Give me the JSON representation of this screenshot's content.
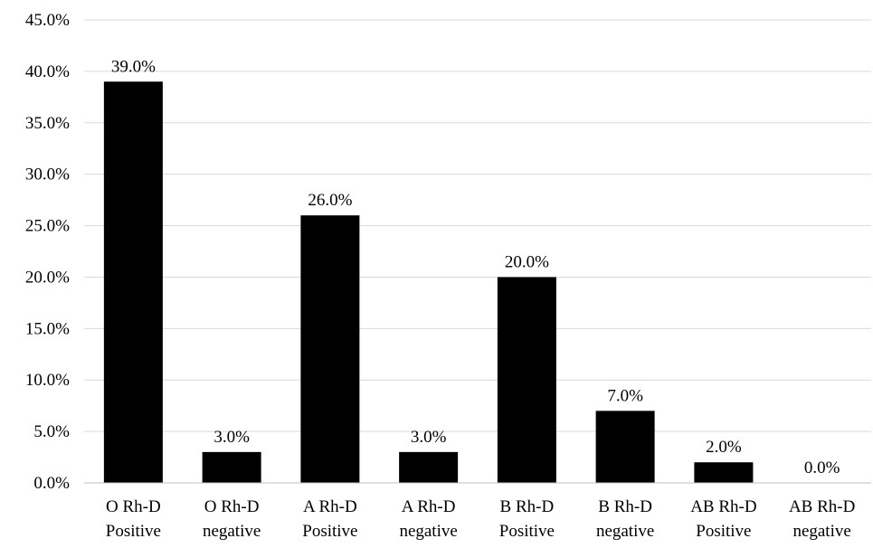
{
  "chart_data": {
    "type": "bar",
    "categories": [
      [
        "O Rh-D",
        "Positive"
      ],
      [
        "O Rh-D",
        "negative"
      ],
      [
        "A Rh-D",
        "Positive"
      ],
      [
        "A Rh-D",
        "negative"
      ],
      [
        "B Rh-D",
        "Positive"
      ],
      [
        "B Rh-D",
        "negative"
      ],
      [
        "AB Rh-D",
        "Positive"
      ],
      [
        "AB Rh-D",
        "negative"
      ]
    ],
    "values": [
      39.0,
      3.0,
      26.0,
      3.0,
      20.0,
      7.0,
      2.0,
      0.0
    ],
    "data_labels": [
      "39.0%",
      "3.0%",
      "26.0%",
      "3.0%",
      "20.0%",
      "7.0%",
      "2.0%",
      "0.0%"
    ],
    "y_ticks": [
      "0.0%",
      "5.0%",
      "10.0%",
      "15.0%",
      "20.0%",
      "25.0%",
      "30.0%",
      "35.0%",
      "40.0%",
      "45.0%"
    ],
    "ylim": [
      0,
      45
    ],
    "y_step": 5,
    "grid": true,
    "legend": "none",
    "bar_color": "#000000",
    "grid_color": "#d9d9d9"
  }
}
